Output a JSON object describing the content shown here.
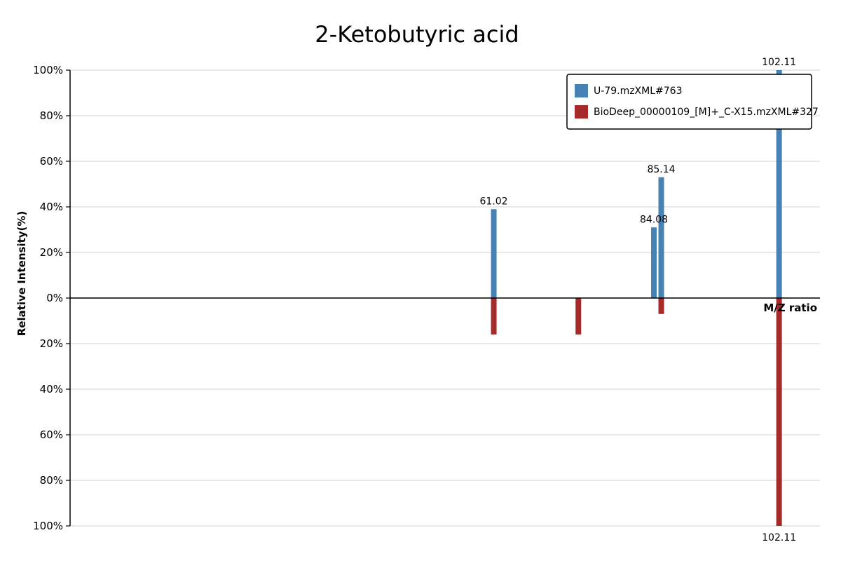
{
  "chart_data": {
    "type": "bar",
    "title": "2-Ketobutyric acid",
    "xlabel": "M/Z ratio",
    "ylabel": "Relative Intensity(%)",
    "xlim": [
      0,
      108
    ],
    "ylim": [
      -100,
      100
    ],
    "y_ticks": [
      "100%",
      "80%",
      "60%",
      "40%",
      "20%",
      "0%",
      "20%",
      "40%",
      "60%",
      "80%",
      "100%"
    ],
    "grid": true,
    "legend_position": "top-right",
    "series": [
      {
        "name": "U-79.mzXML#763",
        "color": "#4682b4",
        "direction": "up",
        "peaks": [
          {
            "mz": 61.02,
            "intensity": 39,
            "label": "61.02"
          },
          {
            "mz": 84.08,
            "intensity": 31,
            "label": "84.08"
          },
          {
            "mz": 85.14,
            "intensity": 53,
            "label": "85.14"
          },
          {
            "mz": 102.11,
            "intensity": 100,
            "label": "102.11"
          }
        ]
      },
      {
        "name": "BioDeep_00000109_[M]+_C-X15.mzXML#327",
        "color": "#a52a2a",
        "direction": "down",
        "peaks": [
          {
            "mz": 61.02,
            "intensity": 16,
            "label": ""
          },
          {
            "mz": 73.2,
            "intensity": 16,
            "label": ""
          },
          {
            "mz": 85.14,
            "intensity": 7,
            "label": ""
          },
          {
            "mz": 102.11,
            "intensity": 100,
            "label": "102.11"
          }
        ]
      }
    ]
  }
}
